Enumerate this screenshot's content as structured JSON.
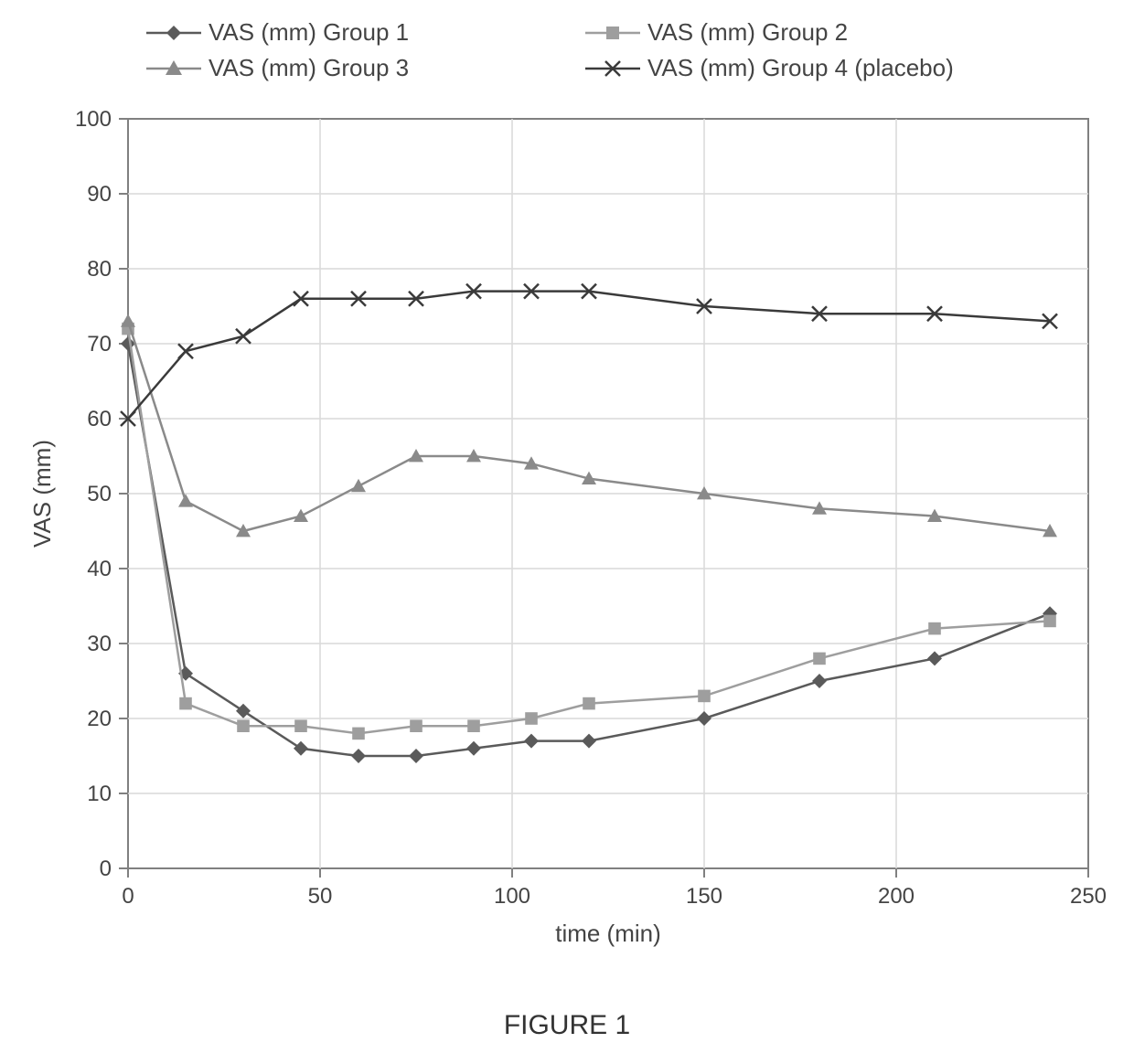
{
  "chart": {
    "type": "line",
    "xlabel": "time (min)",
    "ylabel": "VAS (mm)",
    "xlim": [
      0,
      250
    ],
    "ylim": [
      0,
      100
    ],
    "xtick_step": 50,
    "ytick_step": 10,
    "axis_fontsize": 24,
    "label_fontsize": 26,
    "background_color": "#ffffff",
    "plot_bg_color": "#ffffff",
    "grid_color": "#d9d9d9",
    "axis_color": "#808080",
    "tick_color": "#808080",
    "line_width": 2.5,
    "marker_size": 8,
    "x_values": [
      0,
      15,
      30,
      45,
      60,
      75,
      90,
      105,
      120,
      150,
      180,
      210,
      240
    ],
    "series": [
      {
        "label": "VAS (mm) Group 1",
        "marker": "diamond",
        "color": "#5a5a5a",
        "y": [
          70,
          26,
          21,
          16,
          15,
          15,
          16,
          17,
          17,
          20,
          25,
          28,
          34
        ]
      },
      {
        "label": "VAS (mm) Group 2",
        "marker": "square",
        "color": "#9e9e9e",
        "y": [
          72,
          22,
          19,
          19,
          18,
          19,
          19,
          20,
          22,
          23,
          28,
          32,
          33
        ]
      },
      {
        "label": "VAS (mm) Group 3",
        "marker": "triangle",
        "color": "#8a8a8a",
        "y": [
          73,
          49,
          45,
          47,
          51,
          55,
          55,
          54,
          52,
          50,
          48,
          47,
          45
        ]
      },
      {
        "label": "VAS (mm) Group 4 (placebo)",
        "marker": "x",
        "color": "#3a3a3a",
        "y": [
          60,
          69,
          71,
          76,
          76,
          76,
          77,
          77,
          77,
          75,
          74,
          74,
          73
        ]
      }
    ]
  },
  "caption": "FIGURE 1"
}
